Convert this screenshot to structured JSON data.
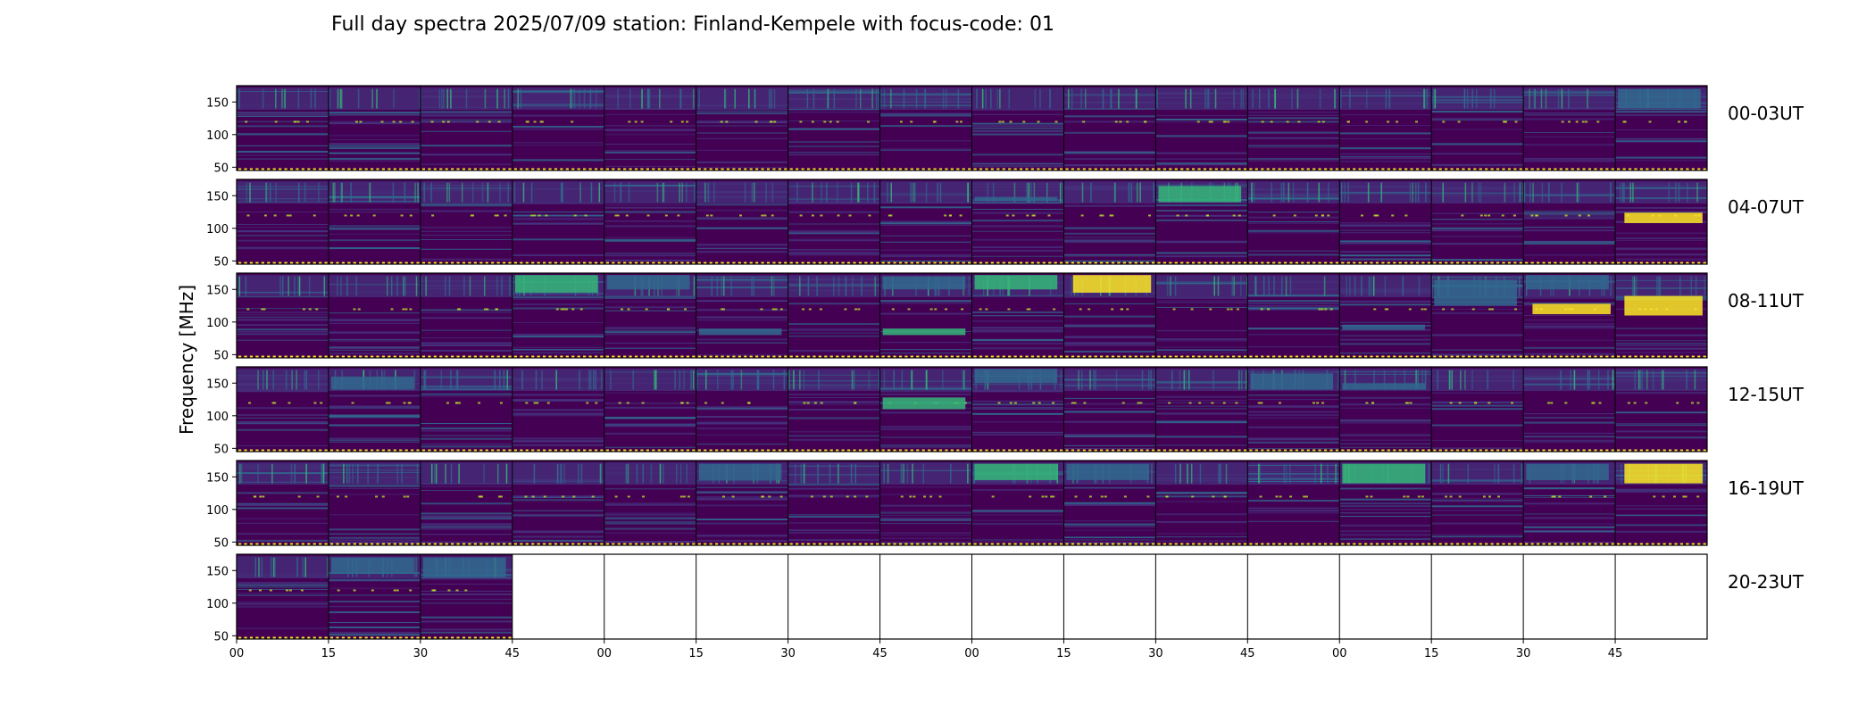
{
  "chart_data": {
    "type": "heatmap",
    "title": "Full day spectra 2025/07/09 station: Finland-Kempele with focus-code: 01",
    "ylabel": "Frequency [MHz]",
    "yticks": [
      50,
      100,
      150
    ],
    "ylim": [
      45,
      175
    ],
    "xticks": [
      "00",
      "15",
      "30",
      "45",
      "00",
      "15",
      "30",
      "45",
      "00",
      "15",
      "30",
      "45",
      "00",
      "15",
      "30",
      "45"
    ],
    "panels_per_row": 16,
    "panel_duration_min": 15,
    "rows": [
      {
        "label": "00-03UT",
        "start_hour": 0,
        "filled_panels": 16
      },
      {
        "label": "04-07UT",
        "start_hour": 4,
        "filled_panels": 16
      },
      {
        "label": "08-11UT",
        "start_hour": 8,
        "filled_panels": 16
      },
      {
        "label": "12-15UT",
        "start_hour": 12,
        "filled_panels": 16
      },
      {
        "label": "16-19UT",
        "start_hour": 16,
        "filled_panels": 16
      },
      {
        "label": "20-23UT",
        "start_hour": 20,
        "filled_panels": 3
      }
    ],
    "colormap": "viridis",
    "colors": {
      "background": "#440154",
      "low": "#46327e",
      "mid": "#31688e",
      "high": "#35b779",
      "peak": "#fde725"
    },
    "features": [
      {
        "row": 0,
        "panel": 15,
        "f_low": 140,
        "f_high": 170,
        "level": 0.45
      },
      {
        "row": 1,
        "panel": 10,
        "f_low": 140,
        "f_high": 165,
        "level": 0.85
      },
      {
        "row": 1,
        "panel": 15,
        "f_low": 108,
        "f_high": 124,
        "level": 0.9
      },
      {
        "row": 1,
        "panel": 8,
        "f_low": 142,
        "f_high": 148,
        "level": 0.6
      },
      {
        "row": 2,
        "panel": 15,
        "f_low": 110,
        "f_high": 140,
        "level": 1.0
      },
      {
        "row": 2,
        "panel": 9,
        "f_low": 145,
        "f_high": 172,
        "level": 1.0
      },
      {
        "row": 2,
        "panel": 8,
        "f_low": 150,
        "f_high": 172,
        "level": 0.75
      },
      {
        "row": 2,
        "panel": 7,
        "f_low": 150,
        "f_high": 170,
        "level": 0.6
      },
      {
        "row": 2,
        "panel": 7,
        "f_low": 80,
        "f_high": 90,
        "level": 0.8
      },
      {
        "row": 2,
        "panel": 3,
        "f_low": 145,
        "f_high": 172,
        "level": 0.85
      },
      {
        "row": 2,
        "panel": 4,
        "f_low": 150,
        "f_high": 172,
        "level": 0.6
      },
      {
        "row": 2,
        "panel": 14,
        "f_low": 112,
        "f_high": 128,
        "level": 0.95
      },
      {
        "row": 2,
        "panel": 14,
        "f_low": 150,
        "f_high": 172,
        "level": 0.55
      },
      {
        "row": 2,
        "panel": 5,
        "f_low": 80,
        "f_high": 90,
        "level": 0.5
      },
      {
        "row": 2,
        "panel": 12,
        "f_low": 88,
        "f_high": 96,
        "level": 0.55
      },
      {
        "row": 2,
        "panel": 13,
        "f_low": 125,
        "f_high": 165,
        "level": 0.55
      },
      {
        "row": 3,
        "panel": 7,
        "f_low": 110,
        "f_high": 128,
        "level": 0.85
      },
      {
        "row": 3,
        "panel": 8,
        "f_low": 150,
        "f_high": 172,
        "level": 0.6
      },
      {
        "row": 3,
        "panel": 1,
        "f_low": 140,
        "f_high": 160,
        "level": 0.6
      },
      {
        "row": 3,
        "panel": 11,
        "f_low": 140,
        "f_high": 165,
        "level": 0.55
      },
      {
        "row": 3,
        "panel": 12,
        "f_low": 140,
        "f_high": 150,
        "level": 0.6
      },
      {
        "row": 4,
        "panel": 15,
        "f_low": 140,
        "f_high": 170,
        "level": 1.0
      },
      {
        "row": 4,
        "panel": 14,
        "f_low": 145,
        "f_high": 170,
        "level": 0.6
      },
      {
        "row": 4,
        "panel": 12,
        "f_low": 140,
        "f_high": 170,
        "level": 0.7
      },
      {
        "row": 4,
        "panel": 9,
        "f_low": 145,
        "f_high": 170,
        "level": 0.6
      },
      {
        "row": 4,
        "panel": 8,
        "f_low": 145,
        "f_high": 170,
        "level": 0.65
      },
      {
        "row": 4,
        "panel": 5,
        "f_low": 145,
        "f_high": 170,
        "level": 0.45
      },
      {
        "row": 5,
        "panel": 2,
        "f_low": 140,
        "f_high": 170,
        "level": 0.55
      },
      {
        "row": 5,
        "panel": 1,
        "f_low": 145,
        "f_high": 170,
        "level": 0.4
      }
    ]
  }
}
